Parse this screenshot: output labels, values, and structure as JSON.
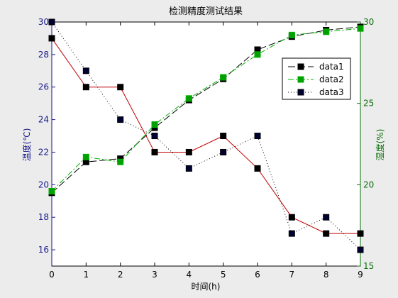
{
  "chart_data": {
    "type": "line",
    "title": "检测精度测试结果",
    "xlabel": "时间(h)",
    "ylabel_left": "温度(℃)",
    "ylabel_right": "湿度(%)",
    "x": [
      0,
      1,
      2,
      3,
      4,
      5,
      6,
      7,
      8,
      9
    ],
    "xlim": [
      0,
      9
    ],
    "ylim_left": [
      15,
      30
    ],
    "ylim_right": [
      15,
      30
    ],
    "x_ticks": [
      "0",
      "1",
      "2",
      "3",
      "4",
      "5",
      "6",
      "7",
      "8",
      "9"
    ],
    "y_left_ticks": [
      "16",
      "18",
      "20",
      "22",
      "24",
      "26",
      "28",
      "30"
    ],
    "y_right_ticks": [
      "15",
      "20",
      "25",
      "30"
    ],
    "grid": false,
    "legend_position": "top-right",
    "series": [
      {
        "name": "data1",
        "axis": "left",
        "color": "#c00000",
        "marker_color": "#000000",
        "dash": "",
        "values": [
          29,
          26,
          26,
          22,
          22,
          23,
          21,
          18,
          17,
          17
        ]
      },
      {
        "name": "data3",
        "axis": "left",
        "color": "#000000",
        "marker_color": "#000033",
        "dash": "1,3",
        "values": [
          30,
          27,
          24,
          23,
          21,
          22,
          23,
          17,
          18,
          16
        ]
      },
      {
        "name": "data1",
        "axis": "right",
        "color": "#000000",
        "marker_color": "#000000",
        "dash": "10,4",
        "values": [
          19.5,
          21.4,
          21.6,
          23.5,
          25.2,
          26.5,
          28.3,
          29.1,
          29.5,
          29.7
        ],
        "legend": true
      },
      {
        "name": "data2",
        "axis": "right",
        "color": "#00b000",
        "marker_color": "#00a000",
        "dash": "8,3,2,3",
        "values": [
          19.6,
          21.7,
          21.4,
          23.7,
          25.3,
          26.6,
          28.0,
          29.2,
          29.4,
          29.6
        ],
        "legend": true
      }
    ],
    "legend_entries": [
      {
        "label": "data1",
        "color": "#000000",
        "marker": "#000000",
        "dash": "10,4"
      },
      {
        "label": "data2",
        "color": "#00b000",
        "marker": "#00a000",
        "dash": "8,3,2,3"
      },
      {
        "label": "data3",
        "color": "#000000",
        "marker": "#000033",
        "dash": "1,3"
      }
    ],
    "colors": {
      "left_axis": "#1a1a8c",
      "right_axis": "#0a6e0a",
      "background": "#ececec",
      "plot_bg": "#ffffff"
    }
  }
}
